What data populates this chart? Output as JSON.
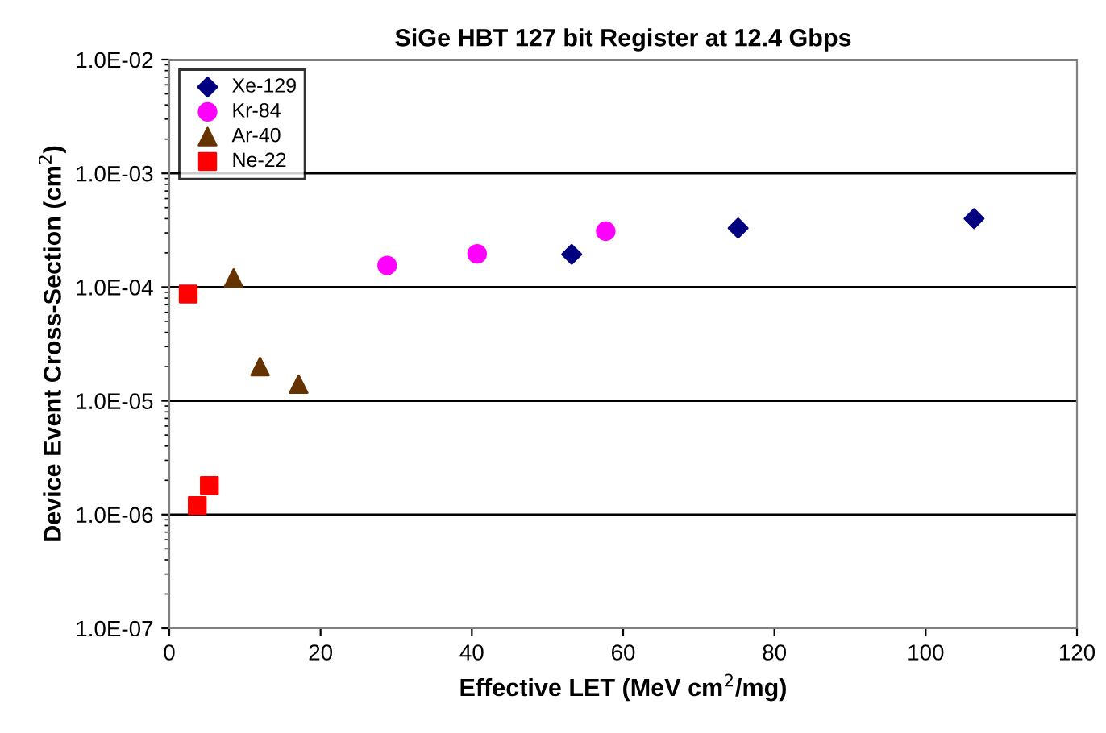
{
  "chart_data": {
    "type": "scatter",
    "title": "SiGe HBT 127 bit Register at 12.4 Gbps",
    "xlabel": "Effective LET (MeV cm$^{2}$/mg)",
    "ylabel": "Device Event Cross-Section (cm$^{2}$)",
    "log": "y",
    "grid": "y",
    "legend": "top left",
    "xlim": [
      0,
      120
    ],
    "xticks": [
      0,
      20,
      40,
      60,
      80,
      100,
      120
    ],
    "ylim": [
      1e-07,
      0.01
    ],
    "yticks": [
      {
        "value": 1e-07,
        "label": "1.0E-07"
      },
      {
        "value": 1e-06,
        "label": "1.0E-06"
      },
      {
        "value": 1e-05,
        "label": "1.0E-05"
      },
      {
        "value": 0.0001,
        "label": "1.0E-04"
      },
      {
        "value": 0.001,
        "label": "1.0E-03"
      },
      {
        "value": 0.01,
        "label": "1.0E-02"
      }
    ],
    "series": [
      {
        "name": "Xe-129",
        "color": "#000080",
        "marker": "diamond",
        "x": [
          53.2,
          75.2,
          106.4
        ],
        "values": [
          0.000194,
          0.00033,
          0.0004
        ]
      },
      {
        "name": "Kr-84",
        "color": "#ff00ff",
        "marker": "circle",
        "x": [
          28.8,
          40.7,
          57.7
        ],
        "values": [
          0.000155,
          0.000196,
          0.00031
        ]
      },
      {
        "name": "Ar-40",
        "color": "#663300",
        "marker": "triangle",
        "x": [
          8.5,
          12.0,
          17.1
        ],
        "values": [
          0.00012,
          2e-05,
          1.4e-05
        ]
      },
      {
        "name": "Ne-22",
        "color": "#ff0000",
        "marker": "square",
        "x": [
          2.5,
          3.7,
          5.3
        ],
        "values": [
          8.7e-05,
          1.2e-06,
          1.8e-06
        ]
      }
    ]
  }
}
